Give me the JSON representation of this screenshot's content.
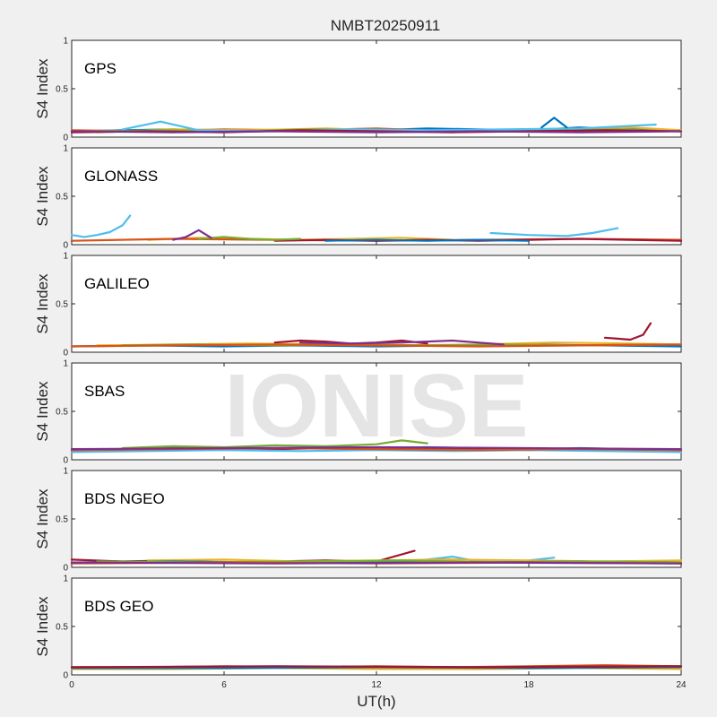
{
  "chart_data": {
    "type": "line",
    "title": "NMBT20250911",
    "xlabel": "UT(h)",
    "ylabel": "S4 Index",
    "xlim": [
      0,
      24
    ],
    "ylim": [
      0,
      1
    ],
    "x_ticks": [
      "0",
      "6",
      "12",
      "18",
      "24"
    ],
    "y_ticks": [
      "0",
      "0.5",
      "1"
    ],
    "watermark": "IONISE",
    "series_colors": [
      "#0072BD",
      "#D95319",
      "#EDB120",
      "#7E2F8E",
      "#77AC30",
      "#4DBEEE",
      "#A2142F"
    ],
    "panels": [
      {
        "label": "GPS",
        "tracks": [
          {
            "color": "#0072BD",
            "x": [
              0,
              2,
              4,
              6,
              8,
              10,
              12,
              14,
              16,
              18,
              20,
              22,
              24
            ],
            "y": [
              0.06,
              0.07,
              0.08,
              0.06,
              0.07,
              0.08,
              0.07,
              0.09,
              0.08,
              0.07,
              0.1,
              0.08,
              0.07
            ]
          },
          {
            "color": "#D95319",
            "x": [
              0,
              3,
              6,
              9,
              12,
              15,
              18,
              21,
              24
            ],
            "y": [
              0.07,
              0.06,
              0.08,
              0.07,
              0.09,
              0.06,
              0.08,
              0.07,
              0.06
            ]
          },
          {
            "color": "#EDB120",
            "x": [
              1,
              4,
              7,
              10,
              13,
              16,
              19,
              22,
              24
            ],
            "y": [
              0.05,
              0.08,
              0.07,
              0.09,
              0.06,
              0.07,
              0.08,
              0.1,
              0.07
            ]
          },
          {
            "color": "#77AC30",
            "x": [
              0.5,
              3.5,
              6.5,
              9.5,
              12.5,
              15.5,
              18.5,
              21.5,
              23.5
            ],
            "y": [
              0.06,
              0.07,
              0.06,
              0.08,
              0.07,
              0.06,
              0.07,
              0.08,
              0.06
            ]
          },
          {
            "color": "#4DBEEE",
            "x": [
              2,
              3.5,
              5,
              8,
              11,
              14,
              17,
              20,
              23
            ],
            "y": [
              0.08,
              0.16,
              0.07,
              0.06,
              0.08,
              0.07,
              0.08,
              0.09,
              0.13
            ]
          },
          {
            "color": "#A2142F",
            "x": [
              0,
              3,
              6,
              9,
              12,
              15,
              18,
              21,
              24
            ],
            "y": [
              0.05,
              0.06,
              0.05,
              0.07,
              0.06,
              0.05,
              0.06,
              0.07,
              0.06
            ]
          },
          {
            "color": "#7E2F8E",
            "x": [
              0,
              4,
              8,
              12,
              16,
              20,
              24
            ],
            "y": [
              0.06,
              0.05,
              0.06,
              0.05,
              0.06,
              0.05,
              0.06
            ]
          },
          {
            "color": "#0072BD",
            "x": [
              18.5,
              19,
              19.5
            ],
            "y": [
              0.1,
              0.2,
              0.1
            ]
          }
        ]
      },
      {
        "label": "GLONASS",
        "tracks": [
          {
            "color": "#4DBEEE",
            "x": [
              0,
              0.5,
              1,
              1.5,
              2,
              2.3
            ],
            "y": [
              0.1,
              0.08,
              0.1,
              0.13,
              0.2,
              0.3
            ]
          },
          {
            "color": "#4DBEEE",
            "x": [
              16.5,
              18,
              19.5,
              20.5,
              21.5
            ],
            "y": [
              0.12,
              0.1,
              0.09,
              0.12,
              0.17
            ]
          },
          {
            "color": "#EDB120",
            "x": [
              3,
              5,
              7,
              9,
              11,
              13,
              15
            ],
            "y": [
              0.05,
              0.07,
              0.06,
              0.05,
              0.06,
              0.07,
              0.05
            ]
          },
          {
            "color": "#D95319",
            "x": [
              0,
              4,
              8,
              12,
              16,
              20,
              24
            ],
            "y": [
              0.04,
              0.06,
              0.05,
              0.04,
              0.05,
              0.06,
              0.05
            ]
          },
          {
            "color": "#A2142F",
            "x": [
              8,
              10,
              12,
              14,
              16,
              18,
              20,
              22,
              24
            ],
            "y": [
              0.04,
              0.05,
              0.04,
              0.05,
              0.04,
              0.05,
              0.06,
              0.05,
              0.04
            ]
          },
          {
            "color": "#77AC30",
            "x": [
              5,
              6,
              7,
              8,
              9
            ],
            "y": [
              0.06,
              0.08,
              0.06,
              0.05,
              0.06
            ]
          },
          {
            "color": "#7E2F8E",
            "x": [
              4,
              4.5,
              5,
              5.5
            ],
            "y": [
              0.05,
              0.08,
              0.15,
              0.07
            ]
          },
          {
            "color": "#0072BD",
            "x": [
              10,
              12,
              14,
              16,
              18
            ],
            "y": [
              0.04,
              0.05,
              0.04,
              0.05,
              0.04
            ]
          }
        ]
      },
      {
        "label": "GALILEO",
        "tracks": [
          {
            "color": "#0072BD",
            "x": [
              0,
              3,
              6,
              9,
              12,
              15,
              18,
              21,
              24
            ],
            "y": [
              0.06,
              0.07,
              0.06,
              0.07,
              0.06,
              0.07,
              0.08,
              0.07,
              0.06
            ]
          },
          {
            "color": "#EDB120",
            "x": [
              1,
              4,
              7,
              10,
              13,
              16,
              19,
              22,
              24
            ],
            "y": [
              0.07,
              0.08,
              0.09,
              0.08,
              0.07,
              0.08,
              0.1,
              0.09,
              0.08
            ]
          },
          {
            "color": "#A2142F",
            "x": [
              8,
              9,
              10,
              11,
              12,
              13,
              14
            ],
            "y": [
              0.1,
              0.12,
              0.11,
              0.09,
              0.1,
              0.12,
              0.09
            ]
          },
          {
            "color": "#A2142F",
            "x": [
              21,
              21.5,
              22,
              22.5,
              22.8
            ],
            "y": [
              0.15,
              0.14,
              0.13,
              0.18,
              0.3
            ]
          },
          {
            "color": "#77AC30",
            "x": [
              2,
              5,
              8,
              11,
              14,
              17,
              20,
              23
            ],
            "y": [
              0.07,
              0.08,
              0.07,
              0.08,
              0.07,
              0.08,
              0.07,
              0.08
            ]
          },
          {
            "color": "#D95319",
            "x": [
              0,
              4,
              8,
              12,
              16,
              20,
              24
            ],
            "y": [
              0.06,
              0.07,
              0.08,
              0.07,
              0.06,
              0.07,
              0.08
            ]
          },
          {
            "color": "#7E2F8E",
            "x": [
              9,
              11,
              13,
              15,
              17
            ],
            "y": [
              0.1,
              0.09,
              0.1,
              0.12,
              0.08
            ]
          }
        ]
      },
      {
        "label": "SBAS",
        "tracks": [
          {
            "color": "#0072BD",
            "x": [
              0,
              2,
              4,
              6,
              8,
              10,
              12,
              14,
              16,
              18,
              20,
              22,
              24
            ],
            "y": [
              0.1,
              0.11,
              0.12,
              0.11,
              0.12,
              0.13,
              0.12,
              0.13,
              0.12,
              0.11,
              0.12,
              0.11,
              0.1
            ]
          },
          {
            "color": "#A2142F",
            "x": [
              0,
              2,
              4,
              6,
              8,
              10,
              12,
              14,
              16,
              18,
              20,
              22,
              24
            ],
            "y": [
              0.09,
              0.1,
              0.11,
              0.12,
              0.11,
              0.12,
              0.11,
              0.12,
              0.11,
              0.1,
              0.11,
              0.1,
              0.09
            ]
          },
          {
            "color": "#77AC30",
            "x": [
              2,
              4,
              6,
              8,
              10,
              12,
              13,
              14
            ],
            "y": [
              0.12,
              0.14,
              0.13,
              0.15,
              0.14,
              0.16,
              0.2,
              0.17
            ]
          },
          {
            "color": "#4DBEEE",
            "x": [
              0,
              3,
              6,
              9,
              12,
              15,
              18,
              21,
              24
            ],
            "y": [
              0.08,
              0.09,
              0.1,
              0.09,
              0.1,
              0.09,
              0.1,
              0.09,
              0.08
            ]
          },
          {
            "color": "#D95319",
            "x": [
              0,
              4,
              8,
              12,
              16,
              20,
              24
            ],
            "y": [
              0.1,
              0.11,
              0.12,
              0.11,
              0.1,
              0.11,
              0.1
            ]
          },
          {
            "color": "#7E2F8E",
            "x": [
              0,
              6,
              12,
              18,
              24
            ],
            "y": [
              0.11,
              0.12,
              0.13,
              0.12,
              0.11
            ]
          }
        ]
      },
      {
        "label": "BDS NGEO",
        "tracks": [
          {
            "color": "#A2142F",
            "x": [
              0,
              2,
              4,
              6,
              8,
              10,
              12,
              13.5
            ],
            "y": [
              0.08,
              0.06,
              0.07,
              0.05,
              0.06,
              0.07,
              0.06,
              0.17
            ]
          },
          {
            "color": "#4DBEEE",
            "x": [
              12,
              14,
              15,
              16,
              18,
              19
            ],
            "y": [
              0.05,
              0.08,
              0.11,
              0.06,
              0.07,
              0.1
            ]
          },
          {
            "color": "#EDB120",
            "x": [
              3,
              6,
              9,
              12,
              15,
              18,
              21,
              24
            ],
            "y": [
              0.07,
              0.08,
              0.06,
              0.07,
              0.08,
              0.07,
              0.06,
              0.07
            ]
          },
          {
            "color": "#0072BD",
            "x": [
              0,
              4,
              8,
              12,
              16,
              20,
              24
            ],
            "y": [
              0.05,
              0.06,
              0.05,
              0.06,
              0.05,
              0.06,
              0.05
            ]
          },
          {
            "color": "#77AC30",
            "x": [
              1,
              5,
              9,
              13,
              17,
              21,
              24
            ],
            "y": [
              0.06,
              0.05,
              0.06,
              0.07,
              0.05,
              0.06,
              0.05
            ]
          },
          {
            "color": "#D95319",
            "x": [
              0,
              6,
              12,
              18,
              24
            ],
            "y": [
              0.04,
              0.05,
              0.04,
              0.05,
              0.04
            ]
          },
          {
            "color": "#7E2F8E",
            "x": [
              0,
              8,
              16,
              24
            ],
            "y": [
              0.05,
              0.04,
              0.05,
              0.04
            ]
          }
        ]
      },
      {
        "label": "BDS GEO",
        "tracks": [
          {
            "color": "#EDB120",
            "x": [
              0,
              4,
              8,
              12,
              16,
              20,
              24
            ],
            "y": [
              0.06,
              0.06,
              0.07,
              0.06,
              0.06,
              0.07,
              0.06
            ]
          },
          {
            "color": "#D95319",
            "x": [
              0,
              3,
              6,
              9,
              12,
              15,
              18,
              21,
              24
            ],
            "y": [
              0.08,
              0.08,
              0.09,
              0.08,
              0.09,
              0.08,
              0.09,
              0.1,
              0.09
            ]
          },
          {
            "color": "#0072BD",
            "x": [
              0,
              6,
              12,
              18,
              24
            ],
            "y": [
              0.07,
              0.07,
              0.08,
              0.07,
              0.08
            ]
          },
          {
            "color": "#A2142F",
            "x": [
              0,
              8,
              16,
              24
            ],
            "y": [
              0.08,
              0.09,
              0.08,
              0.09
            ]
          }
        ]
      }
    ]
  }
}
